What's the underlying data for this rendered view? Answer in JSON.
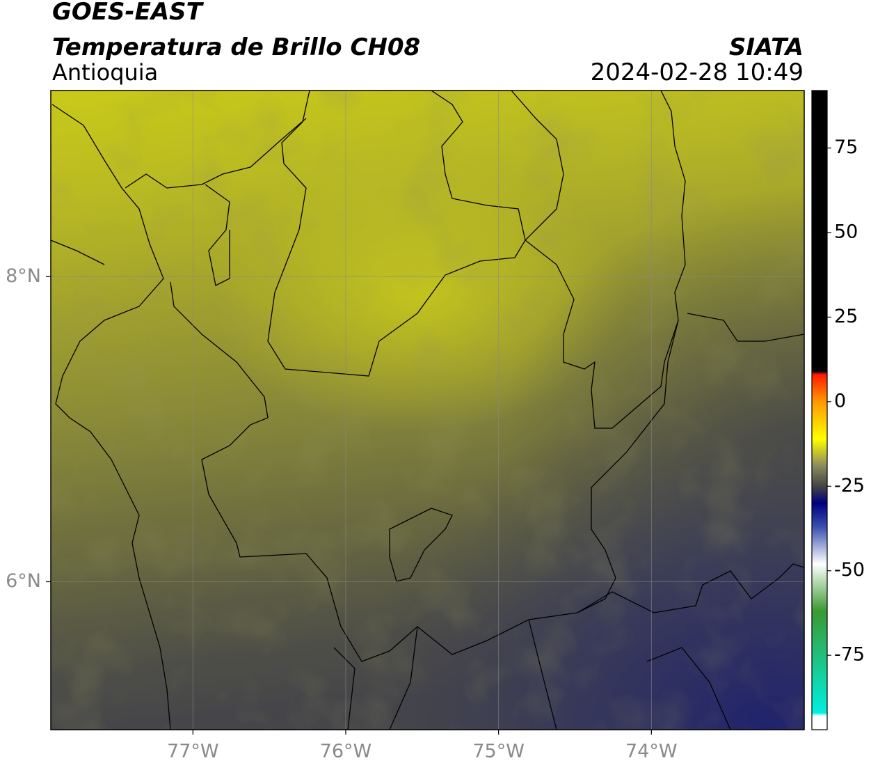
{
  "header": {
    "title": "GOES-EAST",
    "subtitle": "Temperatura de Brillo CH08",
    "region": "Antioquia",
    "source": "SIATA",
    "datetime": "2024-02-28 10:49"
  },
  "map": {
    "lonlim": [
      -77.93,
      -73.0
    ],
    "latlim": [
      5.03,
      9.22
    ],
    "lon_ticks": [
      {
        "value": -77,
        "label": "77°W"
      },
      {
        "value": -76,
        "label": "76°W"
      },
      {
        "value": -75,
        "label": "75°W"
      },
      {
        "value": -74,
        "label": "74°W"
      }
    ],
    "lat_ticks": [
      {
        "value": 8,
        "label": "8°N"
      },
      {
        "value": 6,
        "label": "6°N"
      }
    ],
    "grid": true
  },
  "colorbar": {
    "range": [
      -97,
      92
    ],
    "ticks": [
      75,
      50,
      25,
      0,
      -25,
      -50,
      -75
    ],
    "stops": [
      {
        "value": 92,
        "color": "#000000"
      },
      {
        "value": 9,
        "color": "#000000"
      },
      {
        "value": 8,
        "color": "#ff1a00"
      },
      {
        "value": 0,
        "color": "#ff9900"
      },
      {
        "value": -11,
        "color": "#ffff00"
      },
      {
        "value": -19,
        "color": "#8a8a60"
      },
      {
        "value": -25,
        "color": "#444444"
      },
      {
        "value": -30,
        "color": "#000080"
      },
      {
        "value": -37,
        "color": "#3a4fb0"
      },
      {
        "value": -48,
        "color": "#ffffff"
      },
      {
        "value": -62,
        "color": "#3a9a30"
      },
      {
        "value": -92,
        "color": "#00f0e0"
      },
      {
        "value": -93,
        "color": "#ffffff"
      },
      {
        "value": -97,
        "color": "#ffffff"
      }
    ]
  }
}
